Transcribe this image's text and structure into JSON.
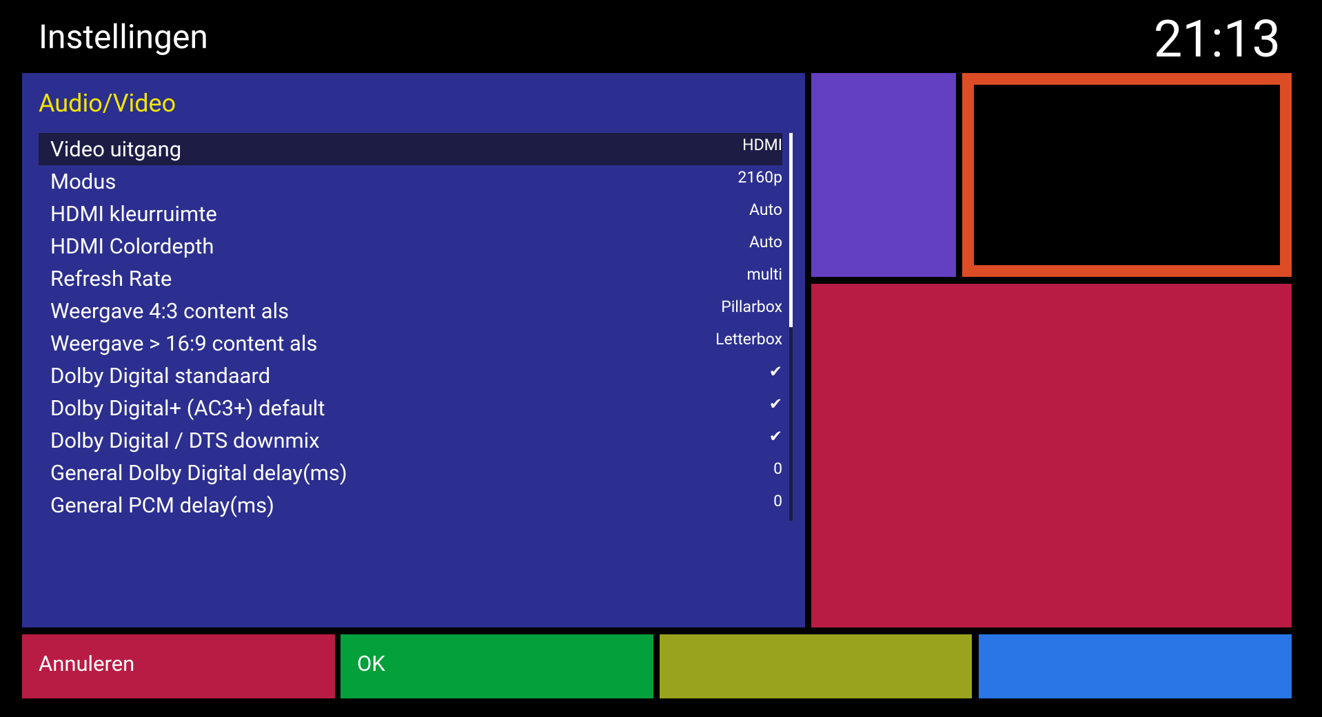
{
  "header": {
    "title": "Instellingen",
    "clock": "21:13"
  },
  "panel": {
    "heading": "Audio/Video",
    "rows": [
      {
        "label": "Video uitgang",
        "value": "HDMI"
      },
      {
        "label": "Modus",
        "value": "2160p"
      },
      {
        "label": "HDMI kleurruimte",
        "value": "Auto"
      },
      {
        "label": "HDMI Colordepth",
        "value": "Auto"
      },
      {
        "label": "Refresh Rate",
        "value": "multi"
      },
      {
        "label": "Weergave 4:3 content als",
        "value": "Pillarbox"
      },
      {
        "label": "Weergave > 16:9 content als",
        "value": "Letterbox"
      },
      {
        "label": "Dolby Digital standaard",
        "value": "✔"
      },
      {
        "label": "Dolby Digital+ (AC3+) default",
        "value": "✔"
      },
      {
        "label": "Dolby Digital / DTS downmix",
        "value": "✔"
      },
      {
        "label": "General Dolby Digital delay(ms)",
        "value": "0"
      },
      {
        "label": "General PCM delay(ms)",
        "value": "0"
      }
    ]
  },
  "buttons": {
    "red": "Annuleren",
    "green": "OK"
  }
}
